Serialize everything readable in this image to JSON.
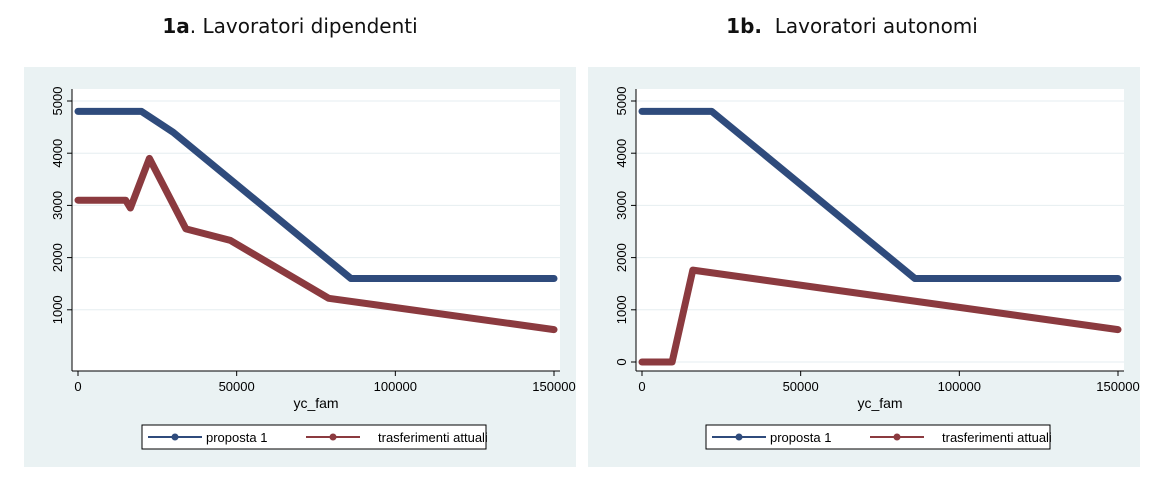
{
  "panels": [
    {
      "title_bold": "1a",
      "title_rest": ". Lavoratori dipendenti",
      "chart_data": {
        "type": "line",
        "xlabel": "yc_fam",
        "ylabel": "",
        "xlim": [
          0,
          150000
        ],
        "ylim": [
          0,
          5000
        ],
        "xticks": [
          0,
          50000,
          100000,
          150000
        ],
        "yticks": [
          1000,
          2000,
          3000,
          4000,
          5000
        ],
        "grid": true,
        "legend_position": "bottom",
        "series": [
          {
            "name": "proposta 1",
            "color": "#2f4b7c",
            "points": [
              [
                0,
                4800
              ],
              [
                20000,
                4800
              ],
              [
                30000,
                4400
              ],
              [
                86000,
                1600
              ],
              [
                150000,
                1600
              ]
            ]
          },
          {
            "name": "trasferimenti attuali",
            "color": "#8b3a3f",
            "points": [
              [
                0,
                3100
              ],
              [
                15000,
                3100
              ],
              [
                16500,
                2950
              ],
              [
                22500,
                3900
              ],
              [
                34000,
                2550
              ],
              [
                48000,
                2330
              ],
              [
                79000,
                1220
              ],
              [
                150000,
                620
              ]
            ]
          }
        ]
      }
    },
    {
      "title_bold": "1b.",
      "title_rest": "  Lavoratori autonomi",
      "chart_data": {
        "type": "line",
        "xlabel": "yc_fam",
        "ylabel": "",
        "xlim": [
          0,
          150000
        ],
        "ylim": [
          0,
          5000
        ],
        "xticks": [
          0,
          50000,
          100000,
          150000
        ],
        "yticks": [
          0,
          1000,
          2000,
          3000,
          4000,
          5000
        ],
        "grid": true,
        "legend_position": "bottom",
        "series": [
          {
            "name": "proposta 1",
            "color": "#2f4b7c",
            "points": [
              [
                0,
                4800
              ],
              [
                22000,
                4800
              ],
              [
                86000,
                1600
              ],
              [
                150000,
                1600
              ]
            ]
          },
          {
            "name": "trasferimenti attuali",
            "color": "#8b3a3f",
            "points": [
              [
                0,
                0
              ],
              [
                9500,
                0
              ],
              [
                16000,
                1760
              ],
              [
                150000,
                620
              ]
            ]
          }
        ]
      }
    }
  ]
}
